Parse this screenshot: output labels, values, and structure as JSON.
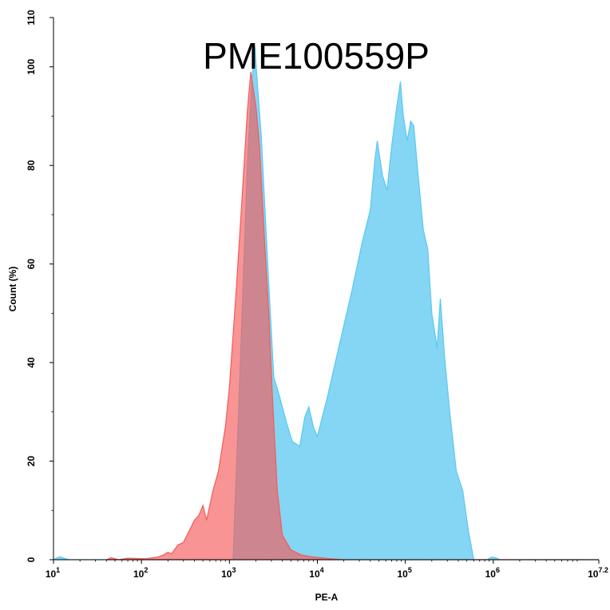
{
  "chart_data": {
    "type": "area",
    "title": "PME100559P",
    "xlabel": "PE-A",
    "ylabel": "Count (%)",
    "x_scale": "log10",
    "xlim": [
      10,
      15848932
    ],
    "ylim": [
      0,
      110
    ],
    "x_ticks": [
      {
        "base": "10",
        "exp": "1"
      },
      {
        "base": "10",
        "exp": "2"
      },
      {
        "base": "10",
        "exp": "3"
      },
      {
        "base": "10",
        "exp": "4"
      },
      {
        "base": "10",
        "exp": "5"
      },
      {
        "base": "10",
        "exp": "6"
      },
      {
        "base": "10",
        "exp": "7.2"
      }
    ],
    "y_ticks": [
      "0",
      "20",
      "40",
      "60",
      "80",
      "100",
      "110"
    ],
    "grid": false,
    "series": [
      {
        "color": "#5bc8f0",
        "opacity": 0.75,
        "points": [
          [
            10,
            0
          ],
          [
            11,
            0.4
          ],
          [
            12,
            0.6
          ],
          [
            13,
            0.3
          ],
          [
            15,
            0
          ],
          [
            1100,
            0
          ],
          [
            1300,
            35
          ],
          [
            1600,
            80
          ],
          [
            1800,
            97
          ],
          [
            1950,
            104
          ],
          [
            2050,
            98
          ],
          [
            2300,
            86
          ],
          [
            2800,
            56
          ],
          [
            3200,
            37
          ],
          [
            3600,
            34
          ],
          [
            4000,
            31
          ],
          [
            4600,
            27
          ],
          [
            5200,
            24
          ],
          [
            6300,
            23
          ],
          [
            7200,
            29
          ],
          [
            8000,
            31
          ],
          [
            9000,
            27
          ],
          [
            10000,
            25
          ],
          [
            13000,
            33
          ],
          [
            18000,
            44
          ],
          [
            25000,
            55
          ],
          [
            32000,
            64
          ],
          [
            40000,
            71
          ],
          [
            45000,
            81
          ],
          [
            48000,
            85
          ],
          [
            55000,
            78
          ],
          [
            62000,
            75
          ],
          [
            70000,
            84
          ],
          [
            80000,
            92
          ],
          [
            88000,
            97
          ],
          [
            95000,
            90
          ],
          [
            105000,
            85
          ],
          [
            115000,
            89
          ],
          [
            125000,
            88
          ],
          [
            140000,
            78
          ],
          [
            160000,
            67
          ],
          [
            180000,
            63
          ],
          [
            200000,
            50
          ],
          [
            230000,
            43
          ],
          [
            250000,
            53
          ],
          [
            280000,
            41
          ],
          [
            320000,
            30
          ],
          [
            380000,
            18
          ],
          [
            450000,
            14
          ],
          [
            520000,
            6
          ],
          [
            600000,
            0
          ],
          [
            850000,
            0
          ],
          [
            950000,
            0.5
          ],
          [
            1050000,
            0.4
          ],
          [
            1200000,
            0
          ],
          [
            15848932,
            0
          ]
        ]
      },
      {
        "color": "#f55a5a",
        "opacity": 0.65,
        "points": [
          [
            40,
            0
          ],
          [
            45,
            0.4
          ],
          [
            55,
            0
          ],
          [
            70,
            0.3
          ],
          [
            110,
            0.2
          ],
          [
            150,
            0.5
          ],
          [
            180,
            1
          ],
          [
            200,
            1.5
          ],
          [
            220,
            1.2
          ],
          [
            260,
            3
          ],
          [
            300,
            3.5
          ],
          [
            330,
            5
          ],
          [
            400,
            8
          ],
          [
            450,
            9
          ],
          [
            500,
            11
          ],
          [
            550,
            8
          ],
          [
            650,
            14
          ],
          [
            750,
            18
          ],
          [
            900,
            27
          ],
          [
            1000,
            35
          ],
          [
            1200,
            55
          ],
          [
            1400,
            74
          ],
          [
            1600,
            91
          ],
          [
            1750,
            99
          ],
          [
            1850,
            96
          ],
          [
            2000,
            92
          ],
          [
            2200,
            84
          ],
          [
            2500,
            65
          ],
          [
            2800,
            50
          ],
          [
            3100,
            32
          ],
          [
            3500,
            14
          ],
          [
            4000,
            5
          ],
          [
            5000,
            2
          ],
          [
            6500,
            1
          ],
          [
            8500,
            0.6
          ],
          [
            11000,
            0.4
          ],
          [
            14000,
            0.2
          ],
          [
            20000,
            0
          ],
          [
            15848932,
            0
          ]
        ]
      }
    ]
  }
}
